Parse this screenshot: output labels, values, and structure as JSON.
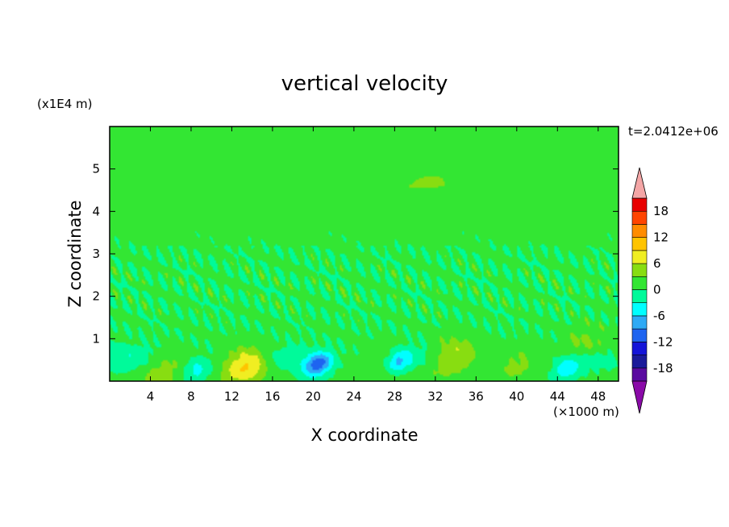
{
  "chart_data": {
    "type": "heatmap",
    "title": "vertical velocity",
    "xlabel": "X coordinate",
    "ylabel": "Z coordinate",
    "x_unit": "(×1000 m)",
    "y_unit": "(x1E4 m)",
    "time_label": "t=2.0412e+06",
    "xlim": [
      0,
      50
    ],
    "ylim": [
      0,
      6
    ],
    "x_ticks": [
      4,
      8,
      12,
      16,
      20,
      24,
      28,
      32,
      36,
      40,
      44,
      48
    ],
    "y_ticks": [
      1,
      2,
      3,
      4,
      5
    ],
    "colorbar": {
      "levels": [
        -21,
        -18,
        -15,
        -12,
        -9,
        -6,
        -3,
        0,
        3,
        6,
        9,
        12,
        15,
        18,
        21
      ],
      "labels": [
        18,
        12,
        6,
        0,
        -6,
        -12,
        -18
      ],
      "under_color": "#8a0aa8",
      "over_color": "#f4a6a6",
      "colors": [
        "#5a0aa0",
        "#1a1a9a",
        "#1414d8",
        "#1e64f0",
        "#2eaaf5",
        "#00ffff",
        "#00fa9a",
        "#33e633",
        "#88dd11",
        "#f0ee22",
        "#ffc400",
        "#ff8c00",
        "#ff4500",
        "#e80000"
      ]
    },
    "field": {
      "background_value": 0.6,
      "features": [
        {
          "kind": "updraft",
          "x": 13.5,
          "z": 0.35,
          "max": 9
        },
        {
          "kind": "updraft",
          "x": 33.5,
          "z": 0.55,
          "max": 7
        },
        {
          "kind": "updraft",
          "x": 5,
          "z": 0.15,
          "max": 4
        },
        {
          "kind": "updraft",
          "x": 27,
          "z": 0.3,
          "max": 3
        },
        {
          "kind": "updraft",
          "x": 40,
          "z": 0.35,
          "max": 3
        },
        {
          "kind": "updraft",
          "x": 46.5,
          "z": 0.8,
          "max": 4
        },
        {
          "kind": "downdraft",
          "x": 20.5,
          "z": 0.4,
          "min": -12
        },
        {
          "kind": "downdraft",
          "x": 28.3,
          "z": 0.45,
          "min": -9
        },
        {
          "kind": "downdraft",
          "x": 8.5,
          "z": 0.25,
          "min": -5
        },
        {
          "kind": "downdraft",
          "x": 45,
          "z": 0.3,
          "min": -6
        }
      ]
    }
  }
}
